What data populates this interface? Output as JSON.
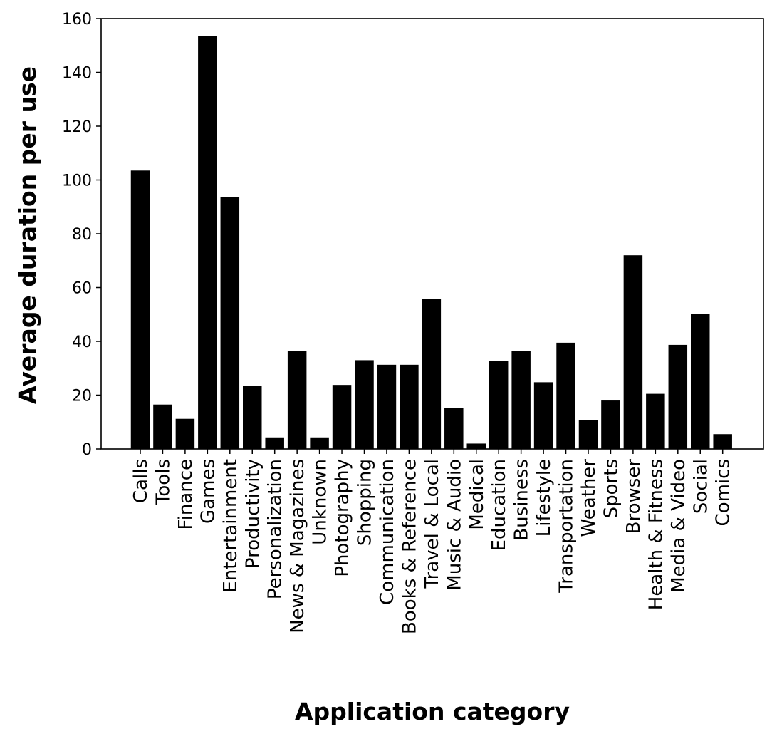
{
  "chart_data": {
    "type": "bar",
    "xlabel": "Application category",
    "ylabel": "Average duration per use",
    "ylim": [
      0,
      160
    ],
    "yticks": [
      0,
      20,
      40,
      60,
      80,
      100,
      120,
      140,
      160
    ],
    "grid": false,
    "bar_color": "#000000",
    "categories": [
      "Calls",
      "Tools",
      "Finance",
      "Games",
      "Entertainment",
      "Productivity",
      "Personalization",
      "News & Magazines",
      "Unknown",
      "Photography",
      "Shopping",
      "Communication",
      "Books & Reference",
      "Travel & Local",
      "Music & Audio",
      "Medical",
      "Education",
      "Business",
      "Lifestyle",
      "Transportation",
      "Weather",
      "Sports",
      "Browser",
      "Health & Fitness",
      "Media & Video",
      "Social",
      "Comics"
    ],
    "values": [
      103.5,
      16.5,
      11.2,
      153.5,
      93.7,
      23.5,
      4.3,
      36.5,
      4.3,
      23.8,
      33.0,
      31.3,
      31.3,
      55.7,
      15.3,
      2.0,
      32.7,
      36.3,
      24.8,
      39.5,
      10.6,
      18.0,
      72.0,
      20.5,
      38.7,
      50.3,
      5.5
    ]
  }
}
